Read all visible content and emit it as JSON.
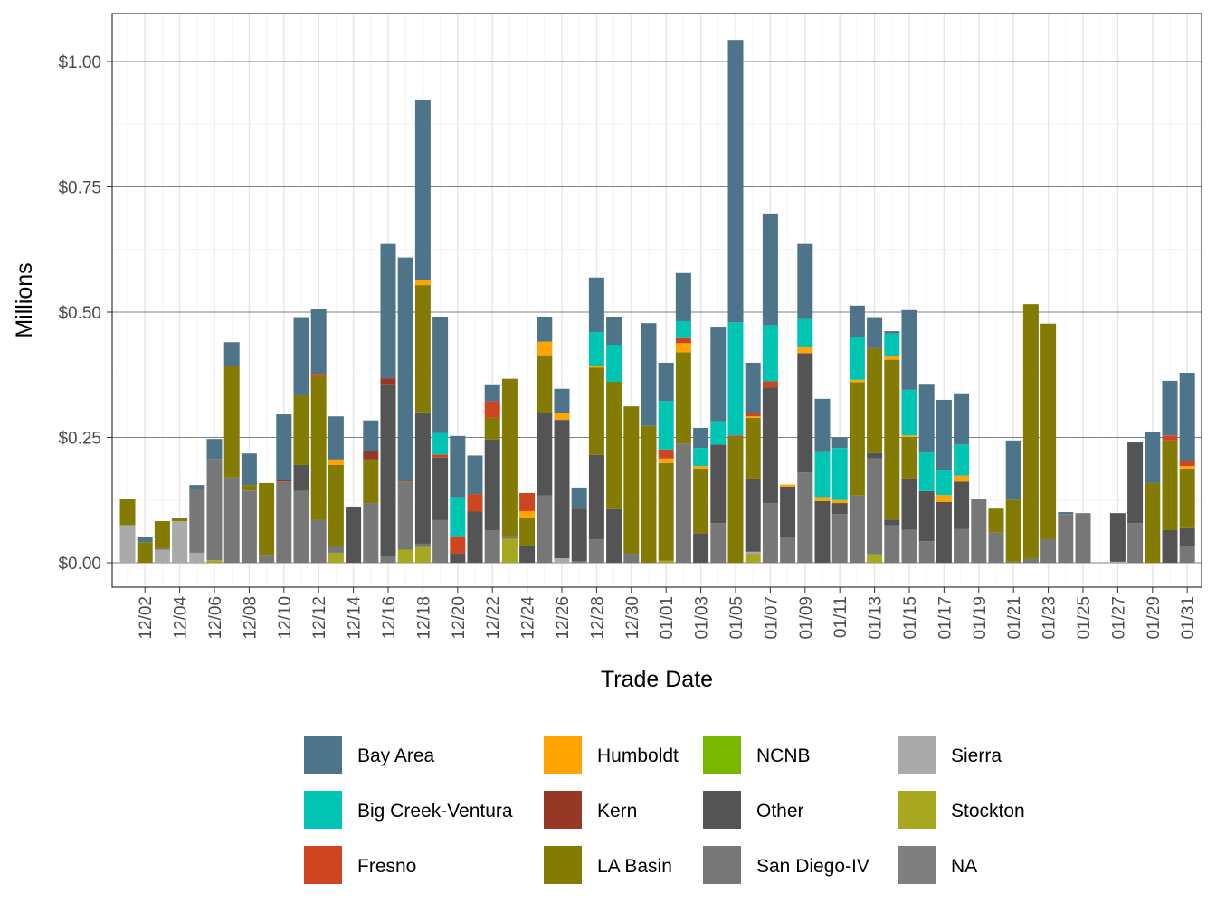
{
  "chart_data": {
    "type": "bar",
    "stacked": true,
    "xlabel": "Trade Date",
    "ylabel": "Millions",
    "ylim": [
      0,
      1.1
    ],
    "y_ticks": [
      "$0.00",
      "$0.25",
      "$0.50",
      "$0.75",
      "$1.00"
    ],
    "y_tick_values": [
      0,
      0.25,
      0.5,
      0.75,
      1.0
    ],
    "x_tick_labels": [
      "12/02",
      "12/04",
      "12/06",
      "12/08",
      "12/10",
      "12/12",
      "12/14",
      "12/16",
      "12/18",
      "12/20",
      "12/22",
      "12/24",
      "12/26",
      "12/28",
      "12/30",
      "01/01",
      "01/03",
      "01/05",
      "01/07",
      "01/09",
      "01/11",
      "01/13",
      "01/15",
      "01/17",
      "01/19",
      "01/21",
      "01/23",
      "01/25",
      "01/27",
      "01/29",
      "01/31"
    ],
    "grid": true,
    "legend_position": "bottom",
    "series": [
      {
        "name": "Bay Area",
        "color": "#4E7489"
      },
      {
        "name": "Big Creek-Ventura",
        "color": "#00C5B2"
      },
      {
        "name": "Fresno",
        "color": "#CD4521"
      },
      {
        "name": "Humboldt",
        "color": "#FFA400"
      },
      {
        "name": "Kern",
        "color": "#953826"
      },
      {
        "name": "LA Basin",
        "color": "#837B03"
      },
      {
        "name": "NCNB",
        "color": "#7AB800"
      },
      {
        "name": "Other",
        "color": "#545454"
      },
      {
        "name": "San Diego-IV",
        "color": "#777777"
      },
      {
        "name": "Sierra",
        "color": "#AAAAAA"
      },
      {
        "name": "Stockton",
        "color": "#A8A820"
      },
      {
        "name": "NA",
        "color": "#7F7F7F"
      }
    ],
    "bars": [
      {
        "date": "12/01",
        "Sierra": 0.075,
        "LA Basin": 0.053
      },
      {
        "date": "12/02",
        "LA Basin": 0.041,
        "Bay Area": 0.011
      },
      {
        "date": "12/03",
        "Sierra": 0.026,
        "San Diego-IV": 0.003,
        "LA Basin": 0.054
      },
      {
        "date": "12/04",
        "Sierra": 0.083,
        "LA Basin": 0.007
      },
      {
        "date": "12/05",
        "Sierra": 0.02,
        "San Diego-IV": 0.128,
        "Bay Area": 0.007
      },
      {
        "date": "12/06",
        "Stockton": 0.005,
        "San Diego-IV": 0.202,
        "Bay Area": 0.04
      },
      {
        "date": "12/07",
        "San Diego-IV": 0.17,
        "LA Basin": 0.222,
        "Bay Area": 0.048
      },
      {
        "date": "12/08",
        "San Diego-IV": 0.144,
        "LA Basin": 0.011,
        "Bay Area": 0.063
      },
      {
        "date": "12/09",
        "San Diego-IV": 0.016,
        "LA Basin": 0.143
      },
      {
        "date": "12/10",
        "San Diego-IV": 0.162,
        "Kern": 0.004,
        "Bay Area": 0.13
      },
      {
        "date": "12/11",
        "San Diego-IV": 0.143,
        "Other": 0.052,
        "LA Basin": 0.139,
        "Bay Area": 0.156
      },
      {
        "date": "12/12",
        "San Diego-IV": 0.085,
        "LA Basin": 0.287,
        "Fresno": 0.005,
        "Bay Area": 0.13
      },
      {
        "date": "12/13",
        "Stockton": 0.02,
        "San Diego-IV": 0.014,
        "LA Basin": 0.161,
        "Humboldt": 0.011,
        "Bay Area": 0.086
      },
      {
        "date": "12/14",
        "Other": 0.112
      },
      {
        "date": "12/15",
        "San Diego-IV": 0.119,
        "LA Basin": 0.087,
        "Kern": 0.017,
        "Bay Area": 0.061
      },
      {
        "date": "12/16",
        "San Diego-IV": 0.013,
        "Other": 0.343,
        "Kern": 0.012,
        "Bay Area": 0.268
      },
      {
        "date": "12/17",
        "Stockton": 0.026,
        "San Diego-IV": 0.136,
        "Kern": 0.002,
        "Bay Area": 0.445
      },
      {
        "date": "12/18",
        "Stockton": 0.031,
        "San Diego-IV": 0.007,
        "Other": 0.262,
        "LA Basin": 0.254,
        "Humboldt": 0.01,
        "Bay Area": 0.36
      },
      {
        "date": "12/19",
        "San Diego-IV": 0.085,
        "Other": 0.125,
        "Fresno": 0.006,
        "Big Creek-Ventura": 0.043,
        "Bay Area": 0.232
      },
      {
        "date": "12/20",
        "Other": 0.018,
        "Fresno": 0.035,
        "Big Creek-Ventura": 0.078,
        "Bay Area": 0.122
      },
      {
        "date": "12/21",
        "Other": 0.102,
        "Fresno": 0.035,
        "Bay Area": 0.077
      },
      {
        "date": "12/22",
        "San Diego-IV": 0.065,
        "Other": 0.181,
        "LA Basin": 0.043,
        "Fresno": 0.033,
        "Bay Area": 0.034
      },
      {
        "date": "12/23",
        "Stockton": 0.048,
        "San Diego-IV": 0.005,
        "LA Basin": 0.314
      },
      {
        "date": "12/24",
        "Other": 0.035,
        "LA Basin": 0.055,
        "Humboldt": 0.013,
        "Fresno": 0.036
      },
      {
        "date": "12/25",
        "San Diego-IV": 0.134,
        "Other": 0.165,
        "LA Basin": 0.115,
        "Humboldt": 0.027,
        "Bay Area": 0.05
      },
      {
        "date": "12/26",
        "Sierra": 0.009,
        "Other": 0.276,
        "Humboldt": 0.013,
        "Bay Area": 0.049
      },
      {
        "date": "12/27",
        "San Diego-IV": 0.003,
        "Other": 0.105,
        "Bay Area": 0.042
      },
      {
        "date": "12/28",
        "San Diego-IV": 0.047,
        "Other": 0.168,
        "LA Basin": 0.174,
        "Humboldt": 0.003,
        "Big Creek-Ventura": 0.068,
        "Bay Area": 0.109
      },
      {
        "date": "12/29",
        "Other": 0.107,
        "LA Basin": 0.254,
        "Big Creek-Ventura": 0.074,
        "Bay Area": 0.056
      },
      {
        "date": "12/30",
        "San Diego-IV": 0.018,
        "LA Basin": 0.294
      },
      {
        "date": "12/31",
        "LA Basin": 0.273,
        "Bay Area": 0.205
      },
      {
        "date": "01/01",
        "Stockton": 0.004,
        "LA Basin": 0.195,
        "Humboldt": 0.009,
        "Fresno": 0.018,
        "Big Creek-Ventura": 0.097,
        "Bay Area": 0.076
      },
      {
        "date": "01/02",
        "San Diego-IV": 0.238,
        "LA Basin": 0.182,
        "Humboldt": 0.018,
        "Fresno": 0.01,
        "Big Creek-Ventura": 0.034,
        "Bay Area": 0.096
      },
      {
        "date": "01/03",
        "Other": 0.059,
        "LA Basin": 0.129,
        "Humboldt": 0.005,
        "Big Creek-Ventura": 0.036,
        "Bay Area": 0.04
      },
      {
        "date": "01/04",
        "San Diego-IV": 0.079,
        "Other": 0.157,
        "Big Creek-Ventura": 0.046,
        "Bay Area": 0.189
      },
      {
        "date": "01/05",
        "LA Basin": 0.251,
        "Fresno": 0.003,
        "Big Creek-Ventura": 0.226,
        "Bay Area": 0.563
      },
      {
        "date": "01/06",
        "Stockton": 0.018,
        "Sierra": 0.004,
        "Other": 0.146,
        "LA Basin": 0.121,
        "Humboldt": 0.003,
        "Fresno": 0.006,
        "Bay Area": 0.101
      },
      {
        "date": "01/07",
        "San Diego-IV": 0.119,
        "Other": 0.231,
        "Fresno": 0.012,
        "Big Creek-Ventura": 0.112,
        "Bay Area": 0.223
      },
      {
        "date": "01/08",
        "San Diego-IV": 0.051,
        "Other": 0.101,
        "Humboldt": 0.004
      },
      {
        "date": "01/09",
        "San Diego-IV": 0.18,
        "Other": 0.238,
        "Humboldt": 0.013,
        "Big Creek-Ventura": 0.055,
        "Bay Area": 0.15
      },
      {
        "date": "01/10",
        "Other": 0.123,
        "Humboldt": 0.008,
        "Big Creek-Ventura": 0.09,
        "Bay Area": 0.106
      },
      {
        "date": "01/11",
        "San Diego-IV": 0.097,
        "Other": 0.022,
        "Humboldt": 0.006,
        "Big Creek-Ventura": 0.104,
        "Bay Area": 0.021
      },
      {
        "date": "01/12",
        "San Diego-IV": 0.134,
        "LA Basin": 0.226,
        "Humboldt": 0.005,
        "Big Creek-Ventura": 0.086,
        "Bay Area": 0.062
      },
      {
        "date": "01/13",
        "Stockton": 0.017,
        "San Diego-IV": 0.191,
        "Other": 0.011,
        "LA Basin": 0.209,
        "Bay Area": 0.062
      },
      {
        "date": "01/14",
        "San Diego-IV": 0.075,
        "Other": 0.011,
        "LA Basin": 0.319,
        "Humboldt": 0.007,
        "Big Creek-Ventura": 0.045,
        "Bay Area": 0.005
      },
      {
        "date": "01/15",
        "San Diego-IV": 0.066,
        "Other": 0.102,
        "LA Basin": 0.083,
        "Humboldt": 0.003,
        "Big Creek-Ventura": 0.091,
        "Bay Area": 0.159
      },
      {
        "date": "01/16",
        "San Diego-IV": 0.043,
        "Other": 0.1,
        "Big Creek-Ventura": 0.077,
        "Bay Area": 0.137
      },
      {
        "date": "01/17",
        "Other": 0.121,
        "Humboldt": 0.014,
        "Big Creek-Ventura": 0.049,
        "Bay Area": 0.141
      },
      {
        "date": "01/18",
        "San Diego-IV": 0.067,
        "Other": 0.095,
        "Humboldt": 0.012,
        "Big Creek-Ventura": 0.062,
        "Bay Area": 0.102
      },
      {
        "date": "01/19",
        "San Diego-IV": 0.128
      },
      {
        "date": "01/20",
        "San Diego-IV": 0.06,
        "LA Basin": 0.048
      },
      {
        "date": "01/21",
        "San Diego-IV": 0.002,
        "LA Basin": 0.124,
        "Bay Area": 0.118
      },
      {
        "date": "01/22",
        "San Diego-IV": 0.008,
        "LA Basin": 0.508
      },
      {
        "date": "01/23",
        "San Diego-IV": 0.047,
        "LA Basin": 0.43
      },
      {
        "date": "01/24",
        "San Diego-IV": 0.097,
        "Bay Area": 0.004
      },
      {
        "date": "01/25",
        "San Diego-IV": 0.099
      },
      {
        "date": "01/26"
      },
      {
        "date": "01/27",
        "Sierra": 0.002,
        "Other": 0.097
      },
      {
        "date": "01/28",
        "San Diego-IV": 0.079,
        "Other": 0.161
      },
      {
        "date": "01/29",
        "LA Basin": 0.159,
        "Bay Area": 0.101
      },
      {
        "date": "01/30",
        "Other": 0.065,
        "LA Basin": 0.179,
        "Fresno": 0.01,
        "Bay Area": 0.109
      },
      {
        "date": "01/31",
        "San Diego-IV": 0.034,
        "Other": 0.035,
        "LA Basin": 0.119,
        "Humboldt": 0.005,
        "Fresno": 0.011,
        "Bay Area": 0.175
      }
    ]
  }
}
